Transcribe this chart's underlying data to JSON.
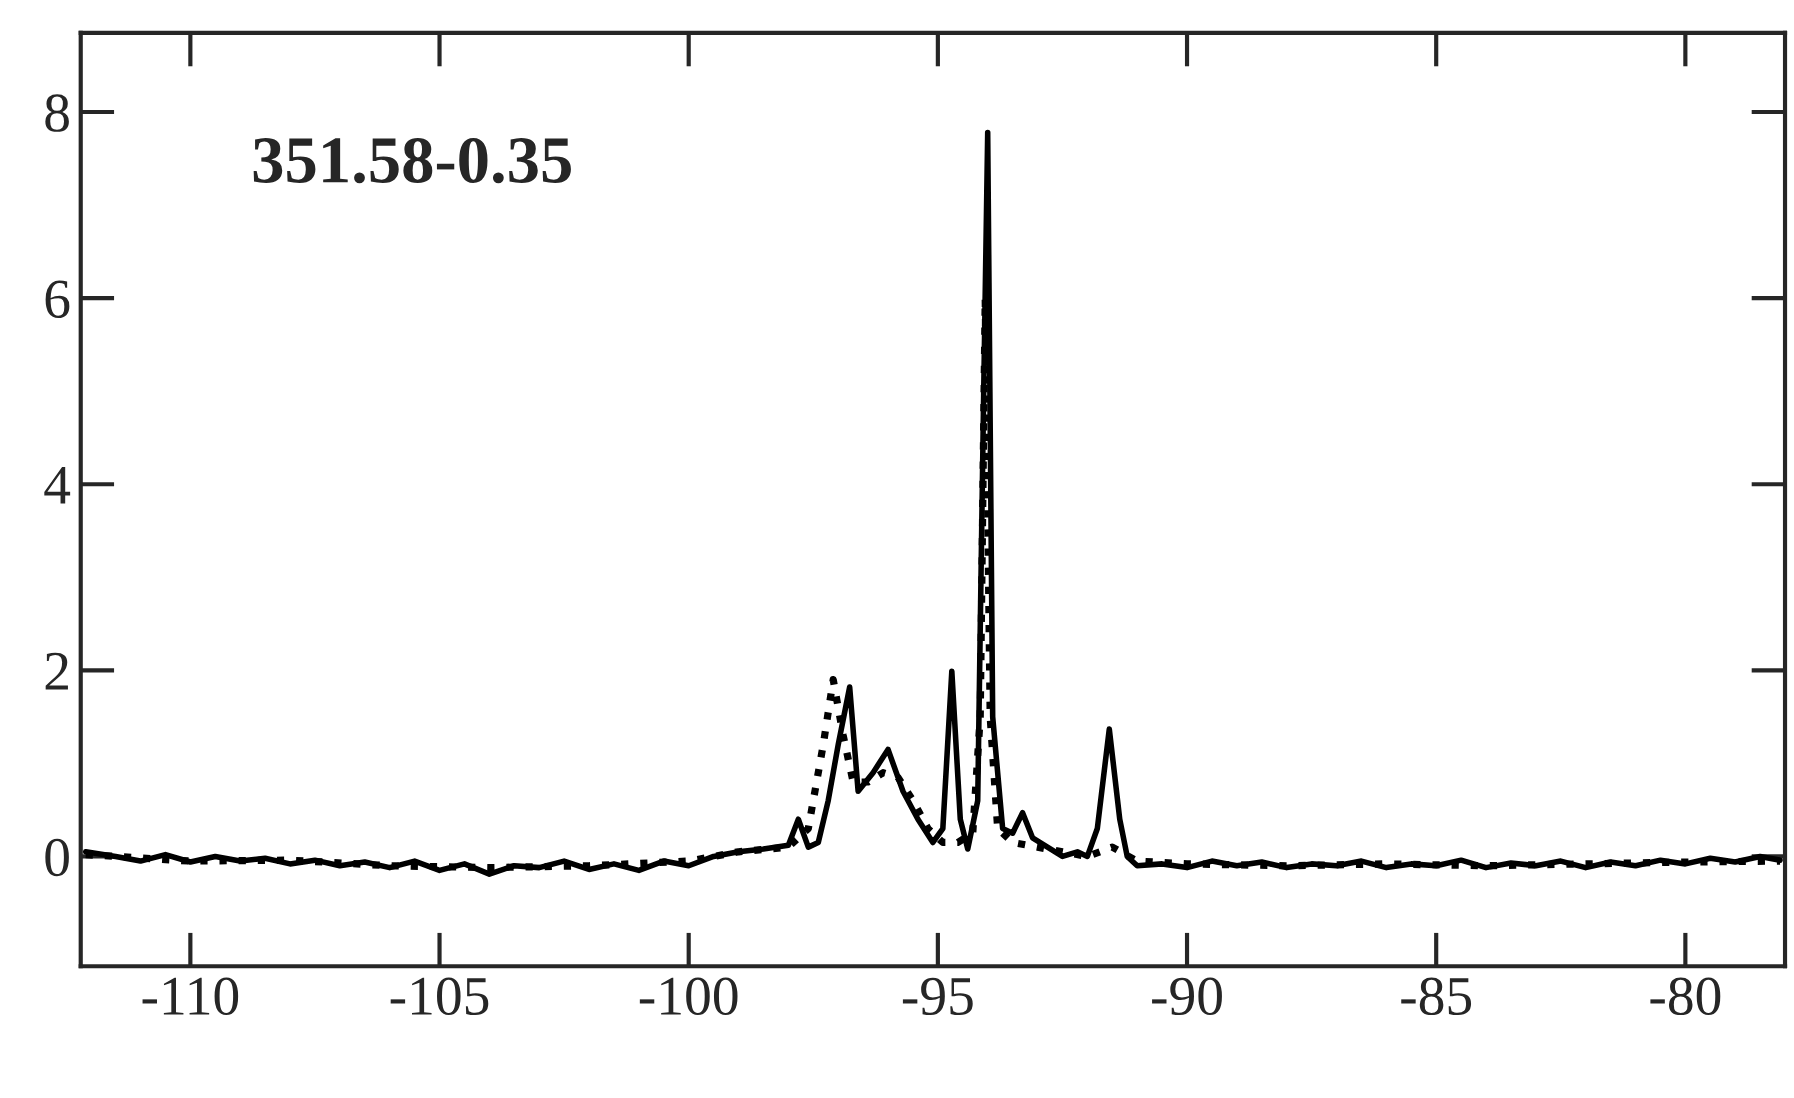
{
  "chart_data": {
    "type": "line",
    "annotations": [
      {
        "text": "351.58-0.35"
      }
    ],
    "xlim": [
      -112.2,
      -78
    ],
    "ylim": [
      -1.18,
      8.85
    ],
    "xticks": [
      -110,
      -105,
      -100,
      -95,
      -90,
      -85,
      -80
    ],
    "yticks": [
      0,
      2,
      4,
      6,
      8
    ],
    "grid": false,
    "legend": false,
    "marker": "none",
    "series": [
      {
        "color": "#000000",
        "line_style": "solid",
        "x": [
          -112.1,
          -111.5,
          -111,
          -110.5,
          -110,
          -109.5,
          -109,
          -108.5,
          -108,
          -107.5,
          -107,
          -106.5,
          -106,
          -105.5,
          -105,
          -104.5,
          -104,
          -103.5,
          -103,
          -102.5,
          -102,
          -101.5,
          -101,
          -100.5,
          -100,
          -99.5,
          -99,
          -98.5,
          -98,
          -97.8,
          -97.6,
          -97.4,
          -97.2,
          -97,
          -96.77,
          -96.6,
          -96.3,
          -96,
          -95.7,
          -95.4,
          -95.1,
          -94.9,
          -94.72,
          -94.55,
          -94.4,
          -94.2,
          -94.08,
          -94.0,
          -93.9,
          -93.7,
          -93.5,
          -93.3,
          -93.1,
          -92.8,
          -92.5,
          -92.2,
          -92,
          -91.8,
          -91.56,
          -91.35,
          -91.2,
          -91,
          -90.5,
          -90,
          -89.5,
          -89,
          -88.5,
          -88,
          -87.5,
          -87,
          -86.5,
          -86,
          -85.5,
          -85,
          -84.5,
          -84,
          -83.5,
          -83,
          -82.5,
          -82,
          -81.5,
          -81,
          -80.5,
          -80,
          -79.5,
          -79,
          -78.5,
          -78.1
        ],
        "values": [
          0.05,
          0.0,
          -0.05,
          0.02,
          -0.06,
          0.0,
          -0.05,
          -0.02,
          -0.08,
          -0.04,
          -0.1,
          -0.06,
          -0.12,
          -0.05,
          -0.15,
          -0.08,
          -0.19,
          -0.1,
          -0.12,
          -0.05,
          -0.14,
          -0.08,
          -0.15,
          -0.05,
          -0.1,
          0.0,
          0.05,
          0.08,
          0.12,
          0.4,
          0.1,
          0.15,
          0.6,
          1.2,
          1.82,
          0.7,
          0.9,
          1.15,
          0.7,
          0.4,
          0.15,
          0.3,
          1.99,
          0.4,
          0.08,
          0.6,
          5.0,
          7.78,
          1.5,
          0.3,
          0.25,
          0.47,
          0.2,
          0.1,
          0.0,
          0.05,
          0.0,
          0.3,
          1.37,
          0.4,
          0.0,
          -0.1,
          -0.08,
          -0.12,
          -0.05,
          -0.1,
          -0.06,
          -0.12,
          -0.08,
          -0.1,
          -0.05,
          -0.12,
          -0.08,
          -0.1,
          -0.04,
          -0.12,
          -0.07,
          -0.1,
          -0.05,
          -0.12,
          -0.06,
          -0.1,
          -0.04,
          -0.08,
          -0.02,
          -0.06,
          0.0,
          -0.04
        ]
      },
      {
        "color": "#000000",
        "line_style": "dotted",
        "x": [
          -112.1,
          -110,
          -108,
          -106,
          -104,
          -102,
          -100,
          -99,
          -98,
          -97.6,
          -97.3,
          -97.1,
          -96.9,
          -96.7,
          -96.4,
          -96.1,
          -95.8,
          -95.5,
          -95.2,
          -94.9,
          -94.6,
          -94.3,
          -94.15,
          -94.05,
          -93.95,
          -93.8,
          -93.5,
          -93,
          -92.5,
          -92,
          -91.5,
          -91,
          -90,
          -88,
          -86,
          -84,
          -82,
          -80,
          -78.1
        ],
        "values": [
          0.02,
          -0.05,
          -0.04,
          -0.1,
          -0.12,
          -0.1,
          -0.05,
          0.05,
          0.1,
          0.3,
          1.2,
          1.9,
          1.3,
          0.8,
          0.8,
          0.9,
          0.85,
          0.6,
          0.3,
          0.15,
          0.15,
          0.25,
          1.5,
          6.0,
          1.5,
          0.3,
          0.15,
          0.1,
          0.05,
          0.0,
          0.1,
          -0.05,
          -0.08,
          -0.1,
          -0.08,
          -0.1,
          -0.08,
          -0.06,
          -0.05
        ]
      }
    ]
  }
}
